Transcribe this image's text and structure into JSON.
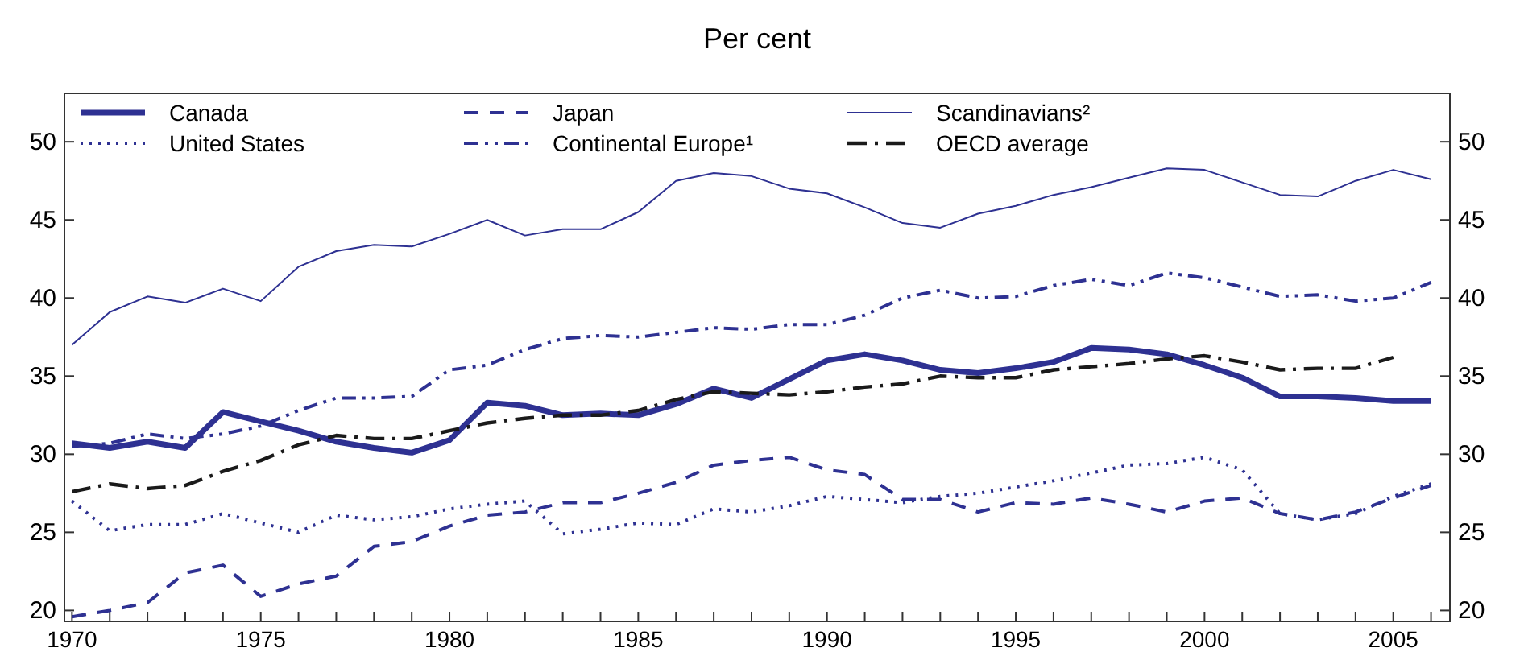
{
  "chart_data": {
    "type": "line",
    "title": "Per cent",
    "x": [
      1970,
      1971,
      1972,
      1973,
      1974,
      1975,
      1976,
      1977,
      1978,
      1979,
      1980,
      1981,
      1982,
      1983,
      1984,
      1985,
      1986,
      1987,
      1988,
      1989,
      1990,
      1991,
      1992,
      1993,
      1994,
      1995,
      1996,
      1997,
      1998,
      1999,
      2000,
      2001,
      2002,
      2003,
      2004,
      2005,
      2006
    ],
    "series": [
      {
        "name": "Canada",
        "color": "#2e3192",
        "line_style": "solid",
        "values": [
          30.7,
          30.4,
          30.8,
          30.4,
          32.7,
          32.1,
          31.5,
          30.8,
          30.4,
          30.1,
          30.9,
          33.3,
          33.1,
          32.5,
          32.6,
          32.5,
          33.2,
          34.2,
          33.6,
          34.8,
          36.0,
          36.4,
          36.0,
          35.4,
          35.2,
          35.5,
          35.9,
          36.8,
          36.7,
          36.4,
          35.7,
          34.9,
          33.7,
          33.7,
          33.6,
          33.4,
          33.4
        ]
      },
      {
        "name": "United States",
        "color": "#2e3192",
        "line_style": "dotted",
        "values": [
          27.0,
          25.1,
          25.5,
          25.5,
          26.2,
          25.6,
          25.0,
          26.1,
          25.8,
          26.0,
          26.5,
          26.8,
          27.0,
          24.9,
          25.2,
          25.6,
          25.5,
          26.5,
          26.3,
          26.7,
          27.3,
          27.1,
          26.9,
          27.3,
          27.5,
          27.9,
          28.3,
          28.8,
          29.3,
          29.4,
          29.8,
          29.0,
          26.2,
          25.8,
          26.2,
          27.3,
          28.1
        ]
      },
      {
        "name": "Japan",
        "color": "#2e3192",
        "line_style": "dashed",
        "values": [
          19.6,
          20.0,
          20.5,
          22.4,
          22.9,
          20.9,
          21.7,
          22.2,
          24.1,
          24.4,
          25.4,
          26.1,
          26.3,
          26.9,
          26.9,
          27.5,
          28.2,
          29.3,
          29.6,
          29.8,
          29.0,
          28.7,
          27.1,
          27.1,
          26.3,
          26.9,
          26.8,
          27.2,
          26.8,
          26.3,
          27.0,
          27.2,
          26.2,
          25.8,
          26.3,
          27.2,
          28.0
        ]
      },
      {
        "name": "Continental Europe¹",
        "color": "#2e3192",
        "line_style": "dashdotdot",
        "values": [
          30.5,
          30.7,
          31.3,
          31.0,
          31.3,
          31.8,
          32.8,
          33.6,
          33.6,
          33.7,
          35.4,
          35.7,
          36.7,
          37.4,
          37.6,
          37.5,
          37.8,
          38.1,
          38.0,
          38.3,
          38.3,
          38.9,
          40.0,
          40.5,
          40.0,
          40.1,
          40.8,
          41.2,
          40.8,
          41.6,
          41.3,
          40.7,
          40.1,
          40.2,
          39.8,
          40.0,
          41.0
        ]
      },
      {
        "name": "Scandinavians²",
        "color": "#2e3192",
        "line_style": "solid",
        "values": [
          37.0,
          39.1,
          40.1,
          39.7,
          40.6,
          39.8,
          42.0,
          43.0,
          43.4,
          43.3,
          44.1,
          45.0,
          44.0,
          44.4,
          44.4,
          45.5,
          47.5,
          48.0,
          47.8,
          47.0,
          46.7,
          45.8,
          44.8,
          44.5,
          45.4,
          45.9,
          46.6,
          47.1,
          47.7,
          48.3,
          48.2,
          47.4,
          46.6,
          46.5,
          47.5,
          48.2,
          47.6
        ]
      },
      {
        "name": "OECD average",
        "color": "#1a1a1a",
        "line_style": "dashdot",
        "values": [
          27.6,
          28.1,
          27.8,
          28.0,
          28.9,
          29.6,
          30.6,
          31.2,
          31.0,
          31.0,
          31.5,
          32.0,
          32.3,
          32.5,
          32.5,
          32.8,
          33.5,
          34.0,
          33.9,
          33.8,
          34.0,
          34.3,
          34.5,
          35.0,
          34.9,
          34.9,
          35.4,
          35.6,
          35.8,
          36.1,
          36.3,
          35.9,
          35.4,
          35.5,
          35.5,
          36.2,
          null
        ]
      }
    ],
    "xlim": [
      1969.8,
      2006.5
    ],
    "xticks": [
      1970,
      {
        "value": 1971,
        "label": null
      },
      {
        "value": 1972,
        "label": null
      },
      {
        "value": 1973,
        "label": null
      },
      {
        "value": 1974,
        "label": null
      },
      1975,
      {
        "value": 1976,
        "label": null
      },
      {
        "value": 1977,
        "label": null
      },
      {
        "value": 1978,
        "label": null
      },
      {
        "value": 1979,
        "label": null
      },
      1980,
      {
        "value": 1981,
        "label": null
      },
      {
        "value": 1982,
        "label": null
      },
      {
        "value": 1983,
        "label": null
      },
      {
        "value": 1984,
        "label": null
      },
      1985,
      {
        "value": 1986,
        "label": null
      },
      {
        "value": 1987,
        "label": null
      },
      {
        "value": 1988,
        "label": null
      },
      {
        "value": 1989,
        "label": null
      },
      1990,
      {
        "value": 1991,
        "label": null
      },
      {
        "value": 1992,
        "label": null
      },
      {
        "value": 1993,
        "label": null
      },
      {
        "value": 1994,
        "label": null
      },
      1995,
      {
        "value": 1996,
        "label": null
      },
      {
        "value": 1997,
        "label": null
      },
      {
        "value": 1998,
        "label": null
      },
      {
        "value": 1999,
        "label": null
      },
      2000,
      {
        "value": 2001,
        "label": null
      },
      {
        "value": 2002,
        "label": null
      },
      {
        "value": 2003,
        "label": null
      },
      {
        "value": 2004,
        "label": null
      },
      2005,
      {
        "value": 2006,
        "label": null
      }
    ],
    "ylim": [
      19.3,
      53.1
    ],
    "yticks": [
      20,
      25,
      30,
      35,
      40,
      45,
      50
    ],
    "y2lim": [
      19.3,
      53.1
    ],
    "y2ticks": [
      20,
      25,
      30,
      35,
      40,
      45,
      50
    ],
    "grid": false,
    "legend": "top",
    "marker": "none"
  }
}
